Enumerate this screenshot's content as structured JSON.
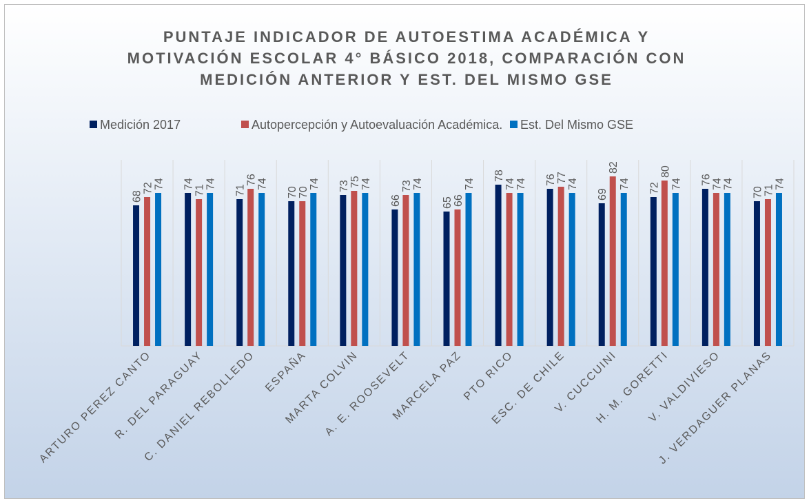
{
  "chart_data": {
    "type": "bar",
    "title": "PUNTAJE INDICADOR  DE AUTOESTIMA ACADÉMICA Y MOTIVACIÓN ESCOLAR 4° BÁSICO 2018, COMPARACIÓN CON MEDICIÓN ANTERIOR Y EST. DEL MISMO GSE",
    "categories": [
      "ARTURO PEREZ CANTO",
      "R. DEL PARAGUAY",
      "C. DANIEL REBOLLEDO",
      "ESPAÑA",
      "MARTA COLVIN",
      "A. E. ROOSEVELT",
      "MARCELA PAZ",
      "PTO RICO",
      "ESC. DE CHILE",
      "V. CUCCUINI",
      "H. M. GORETTI",
      "V. VALDIVIESO",
      "J. VERDAGUER PLANAS"
    ],
    "series": [
      {
        "name": "Medición 2017",
        "color": "#002060",
        "values": [
          68,
          74,
          71,
          70,
          73,
          66,
          65,
          78,
          76,
          69,
          72,
          76,
          70
        ]
      },
      {
        "name": "Autopercepción y Autoevaluación Académica.",
        "color": "#c0504d",
        "values": [
          72,
          71,
          76,
          70,
          75,
          73,
          66,
          74,
          77,
          82,
          80,
          74,
          71
        ]
      },
      {
        "name": "Est. Del Mismo GSE",
        "color": "#0070c0",
        "values": [
          74,
          74,
          74,
          74,
          74,
          74,
          74,
          74,
          74,
          74,
          74,
          74,
          74
        ]
      }
    ],
    "ylim": [
      0,
      92
    ],
    "legend": "top",
    "grid": true
  }
}
